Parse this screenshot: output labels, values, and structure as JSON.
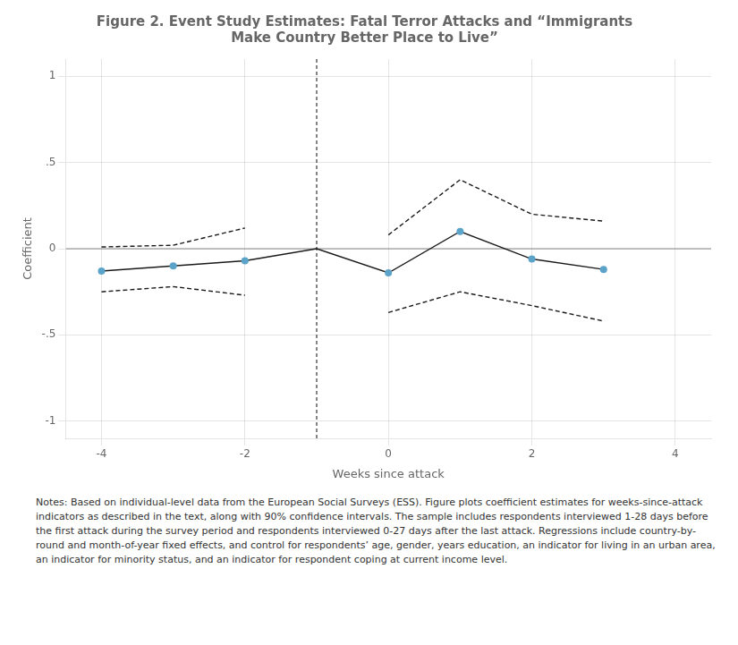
{
  "chart_data": {
    "type": "line",
    "title": [
      "Figure 2. Event Study Estimates: Fatal Terror Attacks and “Immigrants",
      "Make Country Better Place to Live”"
    ],
    "x_label": "Weeks since attack",
    "y_label": "Coefficient",
    "x": [
      -4,
      -3,
      -2,
      -1,
      0,
      1,
      2,
      3
    ],
    "series": [
      {
        "type": "line",
        "marker": "none",
        "line_style": "solid",
        "color": "#1a1a1a",
        "values": [
          -0.13,
          -0.1,
          -0.07,
          0.0,
          -0.14,
          0.1,
          -0.06,
          -0.12
        ]
      },
      {
        "type": "scatter",
        "marker": "circle",
        "color": "#5ba3c9",
        "values": [
          -0.13,
          -0.1,
          -0.07,
          null,
          -0.14,
          0.1,
          -0.06,
          -0.12
        ]
      },
      {
        "type": "line",
        "marker": "none",
        "line_style": "dashed",
        "color": "#1a1a1a",
        "values": [
          0.01,
          0.02,
          0.12,
          null,
          0.08,
          0.4,
          0.2,
          0.16
        ]
      },
      {
        "type": "line",
        "marker": "none",
        "line_style": "dashed",
        "color": "#1a1a1a",
        "values": [
          -0.25,
          -0.22,
          -0.27,
          null,
          -0.37,
          -0.25,
          -0.33,
          -0.42
        ]
      }
    ],
    "xlim": [
      -4.5,
      4.5
    ],
    "xticks": [
      -4,
      -2,
      0,
      2,
      4
    ],
    "ylim": [
      -1.1,
      1.1
    ],
    "yticks": [
      -1,
      {
        "value": -0.5,
        "label": "-.5"
      },
      0,
      {
        "value": 0.5,
        "label": ".5"
      },
      1
    ],
    "hline": {
      "y": 0,
      "color": "#888888",
      "line_style": "solid"
    },
    "vline": {
      "x": -1,
      "color": "#333333",
      "line_style": "dashed"
    },
    "grid": true,
    "annotations": [
      "Notes: Based on individual-level data from the European Social Surveys (ESS).  Figure plots coefficient estimates for weeks-since-attack indicators as described in the text, along with 90% confidence intervals.  The sample includes respondents interviewed 1-28 days before the first attack during the survey period and respondents interviewed 0-27 days after the last attack.  Regressions include country-by-round and month-of-year fixed effects, and control for respondents’ age, gender, years education, an indicator for living in an urban area, an indicator for minority status, and an indicator for respondent coping at current income level."
    ]
  }
}
